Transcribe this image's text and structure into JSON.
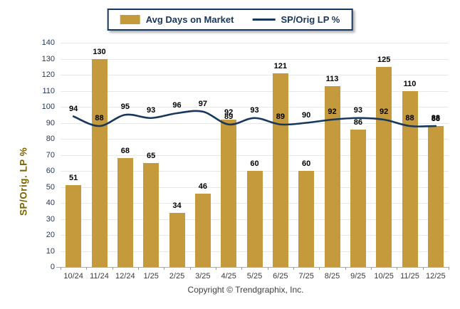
{
  "legend": {
    "items": [
      {
        "label": "Avg Days on Market",
        "type": "bar",
        "color": "#C49A3D"
      },
      {
        "label": "SP/Orig LP %",
        "type": "line",
        "color": "#17375D"
      }
    ]
  },
  "chart_data": {
    "type": "bar",
    "categories": [
      "10/24",
      "11/24",
      "12/24",
      "1/25",
      "2/25",
      "3/25",
      "4/25",
      "5/25",
      "6/25",
      "7/25",
      "8/25",
      "9/25",
      "10/25",
      "11/25",
      "12/25"
    ],
    "series": [
      {
        "name": "Avg Days on Market",
        "type": "bar",
        "color": "#C49A3D",
        "values": [
          51,
          130,
          68,
          65,
          34,
          46,
          92,
          60,
          121,
          60,
          113,
          86,
          125,
          110,
          88
        ]
      },
      {
        "name": "SP/Orig LP %",
        "type": "line",
        "color": "#17375D",
        "values": [
          94,
          88,
          95,
          93,
          96,
          97,
          89,
          93,
          89,
          90,
          92,
          93,
          92,
          88,
          88
        ]
      }
    ],
    "title": "",
    "xlabel": "",
    "ylabel": "SP/Orig. LP %",
    "ylim": [
      0,
      140
    ],
    "ytick_step": 10,
    "grid": true,
    "legend_position": "top",
    "value_labels": true
  },
  "footer": {
    "copyright": "Copyright © Trendgraphix, Inc."
  },
  "colors": {
    "bar": "#C49A3D",
    "line": "#17375D",
    "axis_title": "#7A6200",
    "ytick_label": "#24385B",
    "xtick_label": "#3a3a3a",
    "grid": "#E7E7E7",
    "baseline": "#ADADAD",
    "value_label": "#000000",
    "legend_border": "#17375D"
  }
}
